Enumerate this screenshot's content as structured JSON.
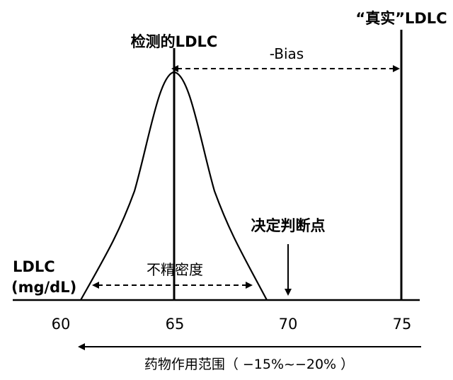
{
  "labels": {
    "measured": "检测的LDLC",
    "true_value": "“真实”LDLC",
    "bias": "-Bias",
    "cutoff": "决定判断点",
    "imprecision": "不精密度",
    "axis_title_line1": "LDLC",
    "axis_title_line2": "(mg/dL)",
    "drug_range": "药物作用范围（ −15%~−20% ）"
  },
  "axis": {
    "ticks": [
      "60",
      "65",
      "70",
      "75"
    ]
  },
  "colors": {
    "ink": "#000000",
    "background": "#ffffff"
  }
}
